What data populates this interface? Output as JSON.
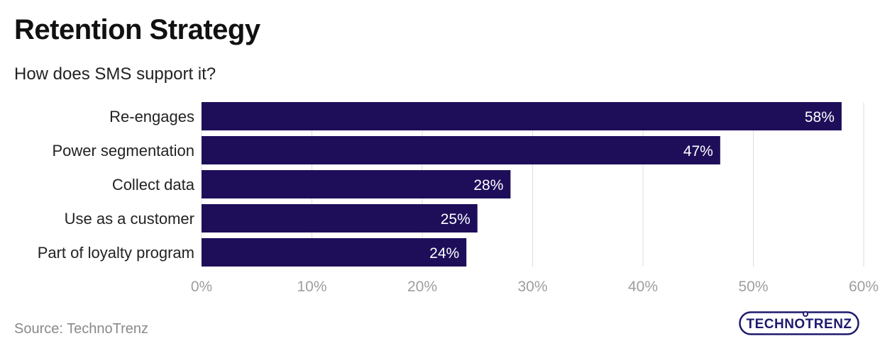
{
  "title": "Retention Strategy",
  "subtitle": "How does SMS support it?",
  "source": "Source: TechnoTrenz",
  "logo_text": "TECHNOTRENZ",
  "colors": {
    "bar": "#1e0e5a",
    "grid": "#dddddd",
    "tick": "#9e9e9e",
    "label": "#222222",
    "logo": "#1e1a6e",
    "logo_accent": "#3a82e0"
  },
  "chart_data": {
    "type": "bar",
    "orientation": "horizontal",
    "categories": [
      "Re-engages",
      "Power segmentation",
      "Collect data",
      "Use as a customer",
      "Part of loyalty program"
    ],
    "values": [
      58,
      47,
      28,
      25,
      24
    ],
    "value_labels": [
      "58%",
      "47%",
      "28%",
      "25%",
      "24%"
    ],
    "xlim": [
      0,
      60
    ],
    "xticks": [
      0,
      10,
      20,
      30,
      40,
      50,
      60
    ],
    "xtick_labels": [
      "0%",
      "10%",
      "20%",
      "30%",
      "40%",
      "50%",
      "60%"
    ],
    "grid": "vertical"
  }
}
